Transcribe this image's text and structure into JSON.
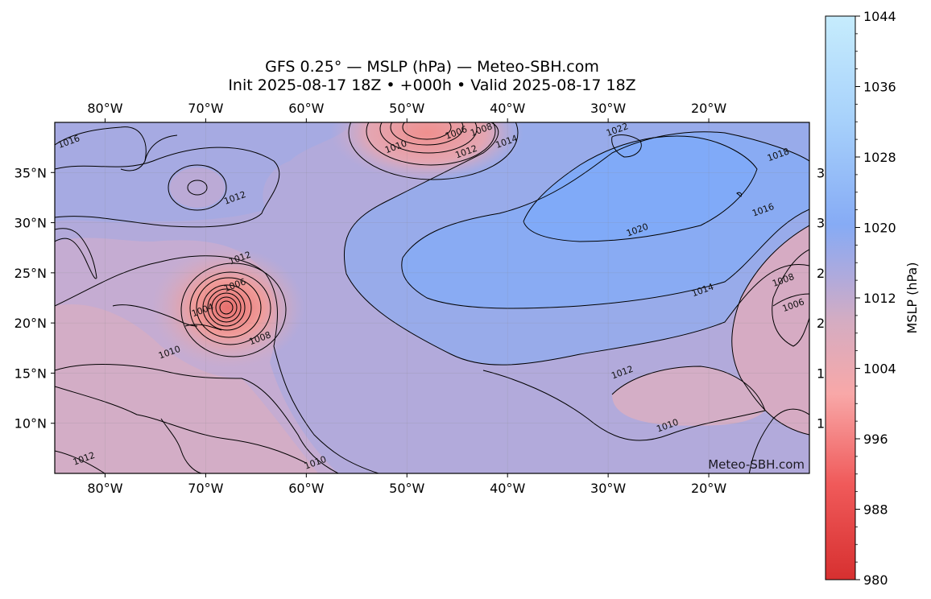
{
  "title": {
    "line1": "GFS 0.25° — MSLP (hPa) — Meteo-SBH.com",
    "line2": "Init 2025-08-17 18Z • +000h • Valid 2025-08-17 18Z"
  },
  "map": {
    "projection": "PlateCarree",
    "lon_range": [
      -85,
      -10
    ],
    "lat_range": [
      5,
      40
    ],
    "lon_ticks": [
      {
        "v": -80,
        "label": "80°W"
      },
      {
        "v": -70,
        "label": "70°W"
      },
      {
        "v": -60,
        "label": "60°W"
      },
      {
        "v": -50,
        "label": "50°W"
      },
      {
        "v": -40,
        "label": "40°W"
      },
      {
        "v": -30,
        "label": "30°W"
      },
      {
        "v": -20,
        "label": "20°W"
      }
    ],
    "lat_ticks": [
      {
        "v": 35,
        "label": "35°N"
      },
      {
        "v": 30,
        "label": "30°N"
      },
      {
        "v": 25,
        "label": "25°N"
      },
      {
        "v": 20,
        "label": "20°N"
      },
      {
        "v": 15,
        "label": "15°N"
      },
      {
        "v": 10,
        "label": "10°N"
      }
    ],
    "right_partial_labels": [
      {
        "v": 35,
        "label": "3"
      },
      {
        "v": 30,
        "label": "3"
      },
      {
        "v": 25,
        "label": "2"
      },
      {
        "v": 20,
        "label": "2"
      },
      {
        "v": 15,
        "label": "1"
      },
      {
        "v": 10,
        "label": "1"
      }
    ],
    "contour_labels": [
      {
        "lon": -83.5,
        "lat": 37.8,
        "text": "1016"
      },
      {
        "lon": -51.0,
        "lat": 37.3,
        "text": "1010"
      },
      {
        "lon": -45.0,
        "lat": 38.7,
        "text": "1006"
      },
      {
        "lon": -42.5,
        "lat": 39.0,
        "text": "1008"
      },
      {
        "lon": -44.0,
        "lat": 36.8,
        "text": "1012"
      },
      {
        "lon": -40.0,
        "lat": 37.8,
        "text": "1014"
      },
      {
        "lon": -67.0,
        "lat": 32.2,
        "text": "1012"
      },
      {
        "lon": -66.5,
        "lat": 26.2,
        "text": "1012"
      },
      {
        "lon": -67.0,
        "lat": 23.5,
        "text": "1006"
      },
      {
        "lon": -70.2,
        "lat": 21.0,
        "text": "1004"
      },
      {
        "lon": -64.5,
        "lat": 18.2,
        "text": "1008"
      },
      {
        "lon": -73.5,
        "lat": 16.8,
        "text": "1010"
      },
      {
        "lon": -82.0,
        "lat": 6.2,
        "text": "1012"
      },
      {
        "lon": -29.0,
        "lat": 39.0,
        "text": "1022"
      },
      {
        "lon": -13.0,
        "lat": 36.5,
        "text": "1018"
      },
      {
        "lon": -27.0,
        "lat": 29.0,
        "text": "1020"
      },
      {
        "lon": -14.5,
        "lat": 31.0,
        "text": "1016"
      },
      {
        "lon": -20.5,
        "lat": 23.0,
        "text": "1014"
      },
      {
        "lon": -28.5,
        "lat": 14.8,
        "text": "1012"
      },
      {
        "lon": -24.0,
        "lat": 9.5,
        "text": "1010"
      },
      {
        "lon": -12.5,
        "lat": 24.0,
        "text": "1008"
      },
      {
        "lon": -11.5,
        "lat": 21.5,
        "text": "1006"
      },
      {
        "lon": -59.0,
        "lat": 5.8,
        "text": "1010"
      }
    ],
    "watermark": "Meteo-SBH.com"
  },
  "colorbar": {
    "label": "MSLP (hPa)",
    "min": 980,
    "max": 1044,
    "ticks": [
      980,
      988,
      996,
      1004,
      1012,
      1020,
      1028,
      1036,
      1044
    ],
    "colors": {
      "low": "#d73030",
      "mid_low": "#f4a3a3",
      "mid": "#b1a9dc",
      "mid_high": "#86abf5",
      "high": "#c6ecfd"
    }
  }
}
